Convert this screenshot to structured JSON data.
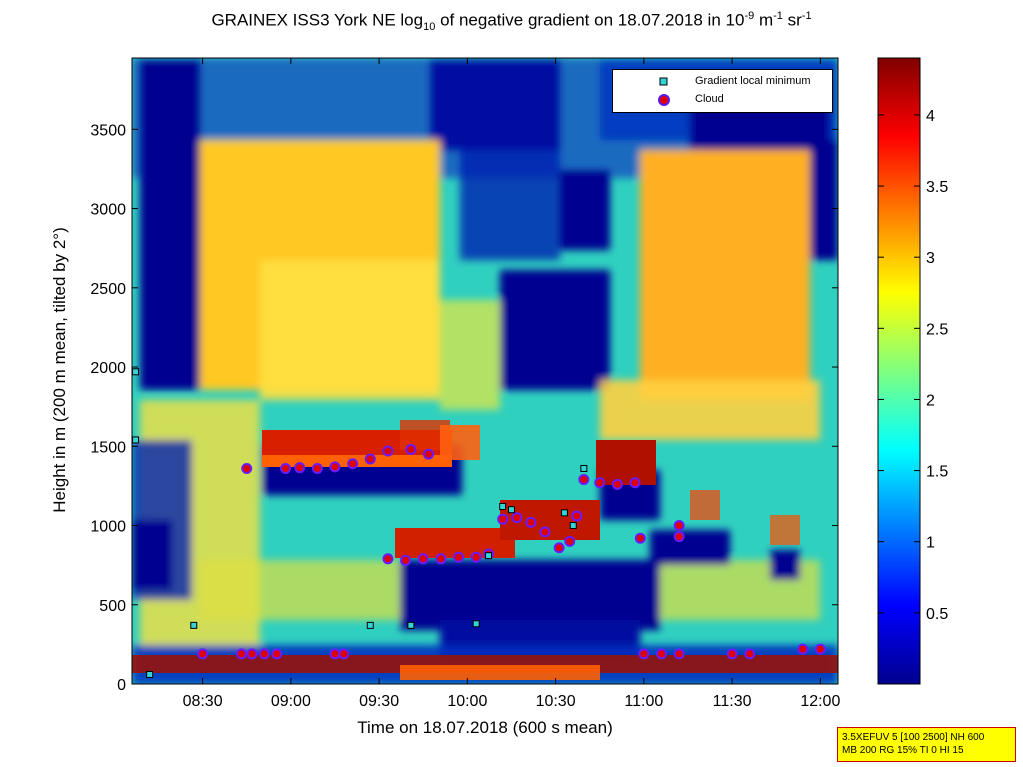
{
  "title": {
    "prefix": "GRAINEX ISS3 York NE log",
    "sub": "10",
    "middle": " of negative gradient on 18.07.2018 in 10",
    "sup1": "-9",
    "mid2": " m",
    "sup2": "-1",
    "mid3": " sr",
    "sup3": "-1"
  },
  "chart_data": {
    "type": "heatmap",
    "xlabel": "Time on 18.07.2018 (600 s mean)",
    "ylabel": "Height in m (200 m mean, tilted by 2°)",
    "x_ticks": [
      "08:30",
      "09:00",
      "09:30",
      "10:00",
      "10:30",
      "11:00",
      "11:30",
      "12:00"
    ],
    "x_tick_hours": [
      8.5,
      9.0,
      9.5,
      10.0,
      10.5,
      11.0,
      11.5,
      12.0
    ],
    "xlim": [
      8.1,
      12.1
    ],
    "y_ticks": [
      0,
      500,
      1000,
      1500,
      2000,
      2500,
      3000,
      3500
    ],
    "ylim": [
      0,
      3950
    ],
    "colorbar": {
      "colormap": "jet",
      "range": [
        0.0,
        4.4
      ],
      "ticks": [
        0.5,
        1,
        1.5,
        2,
        2.5,
        3,
        3.5,
        4
      ],
      "tick_labels": [
        "0.5",
        "1",
        "1.5",
        "2",
        "2.5",
        "3",
        "3.5",
        "4"
      ]
    },
    "legend": {
      "placement": "top-right",
      "entries": [
        "Gradient local minimum",
        "Cloud"
      ]
    },
    "series": [
      {
        "name": "Cloud",
        "points": [
          [
            8.5,
            190
          ],
          [
            8.72,
            190
          ],
          [
            8.78,
            190
          ],
          [
            8.85,
            190
          ],
          [
            8.92,
            190
          ],
          [
            9.25,
            190
          ],
          [
            9.3,
            190
          ],
          [
            11.0,
            190
          ],
          [
            11.1,
            190
          ],
          [
            11.2,
            190
          ],
          [
            11.5,
            190
          ],
          [
            11.6,
            190
          ],
          [
            11.9,
            220
          ],
          [
            12.0,
            220
          ],
          [
            8.75,
            1360
          ],
          [
            8.97,
            1360
          ],
          [
            9.05,
            1365
          ],
          [
            9.15,
            1360
          ],
          [
            9.25,
            1370
          ],
          [
            9.35,
            1390
          ],
          [
            9.45,
            1420
          ],
          [
            9.55,
            1470
          ],
          [
            9.68,
            1480
          ],
          [
            9.78,
            1450
          ],
          [
            9.55,
            790
          ],
          [
            9.65,
            780
          ],
          [
            9.75,
            790
          ],
          [
            9.85,
            790
          ],
          [
            9.95,
            800
          ],
          [
            10.05,
            800
          ],
          [
            10.12,
            820
          ],
          [
            10.2,
            1040
          ],
          [
            10.28,
            1050
          ],
          [
            10.36,
            1020
          ],
          [
            10.44,
            960
          ],
          [
            10.52,
            860
          ],
          [
            10.58,
            900
          ],
          [
            10.62,
            1060
          ],
          [
            10.66,
            1290
          ],
          [
            10.75,
            1270
          ],
          [
            10.85,
            1260
          ],
          [
            10.95,
            1270
          ],
          [
            11.2,
            1000
          ],
          [
            11.2,
            930
          ],
          [
            10.98,
            920
          ]
        ]
      },
      {
        "name": "Gradient local minimum",
        "points": [
          [
            8.12,
            1540
          ],
          [
            8.12,
            1970
          ],
          [
            8.2,
            60
          ],
          [
            8.45,
            370
          ],
          [
            9.45,
            370
          ],
          [
            9.68,
            370
          ],
          [
            10.05,
            380
          ],
          [
            10.2,
            1120
          ],
          [
            10.25,
            1100
          ],
          [
            10.55,
            1080
          ],
          [
            10.6,
            1000
          ],
          [
            10.66,
            1360
          ],
          [
            10.12,
            810
          ]
        ]
      }
    ]
  },
  "infobox": {
    "line1": "3.5XEFUV 5 [100 2500] NH 600",
    "line2": "MB 200 RG 15% TI 0 HI 15"
  }
}
